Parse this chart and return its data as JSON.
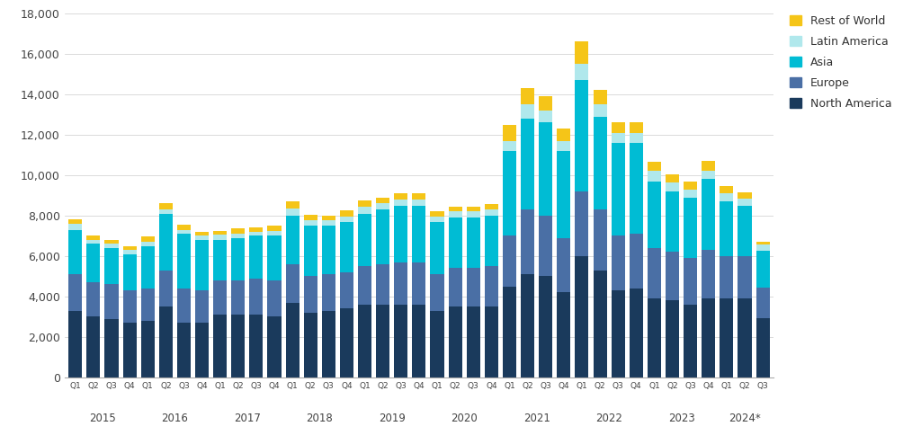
{
  "quarters": [
    "Q1",
    "Q2",
    "Q3",
    "Q4",
    "Q1",
    "Q2",
    "Q3",
    "Q4",
    "Q1",
    "Q2",
    "Q3",
    "Q4",
    "Q1",
    "Q2",
    "Q3",
    "Q4",
    "Q1",
    "Q2",
    "Q3",
    "Q4",
    "Q1",
    "Q2",
    "Q3",
    "Q4",
    "Q1",
    "Q2",
    "Q3",
    "Q4",
    "Q1",
    "Q2",
    "Q3",
    "Q4",
    "Q1",
    "Q2",
    "Q3",
    "Q4",
    "Q1",
    "Q2",
    "Q3"
  ],
  "year_labels": [
    "2015",
    "2016",
    "2017",
    "2018",
    "2019",
    "2020",
    "2021",
    "2022",
    "2023",
    "2024*"
  ],
  "year_positions": [
    1.5,
    5.5,
    9.5,
    13.5,
    17.5,
    21.5,
    25.5,
    29.5,
    33.5,
    37.0
  ],
  "north_america": [
    3300,
    3000,
    2900,
    2700,
    2800,
    3500,
    2700,
    2700,
    3100,
    3100,
    3100,
    3000,
    3700,
    3200,
    3300,
    3400,
    3600,
    3600,
    3600,
    3600,
    3300,
    3500,
    3500,
    3500,
    4500,
    5100,
    5000,
    4200,
    6000,
    5300,
    4300,
    4400,
    3900,
    3800,
    3600,
    3900,
    3900,
    3900,
    2950
  ],
  "europe": [
    1800,
    1700,
    1700,
    1600,
    1600,
    1800,
    1700,
    1600,
    1700,
    1700,
    1800,
    1800,
    1900,
    1800,
    1800,
    1800,
    1900,
    2000,
    2100,
    2100,
    1800,
    1900,
    1900,
    2000,
    2500,
    3200,
    3000,
    2700,
    3200,
    3000,
    2700,
    2700,
    2500,
    2400,
    2300,
    2400,
    2100,
    2100,
    1500
  ],
  "asia": [
    2200,
    1900,
    1800,
    1800,
    2100,
    2800,
    2700,
    2500,
    2000,
    2100,
    2100,
    2200,
    2400,
    2500,
    2400,
    2500,
    2600,
    2700,
    2800,
    2800,
    2600,
    2500,
    2500,
    2500,
    4200,
    4500,
    4600,
    4300,
    5500,
    4600,
    4600,
    4500,
    3300,
    3000,
    3000,
    3500,
    2700,
    2500,
    1800
  ],
  "latin_america": [
    300,
    200,
    200,
    200,
    200,
    200,
    200,
    200,
    250,
    200,
    200,
    250,
    350,
    250,
    250,
    250,
    350,
    300,
    300,
    300,
    250,
    300,
    300,
    300,
    500,
    700,
    600,
    500,
    800,
    600,
    500,
    500,
    500,
    450,
    400,
    400,
    400,
    350,
    300
  ],
  "rest_of_world": [
    200,
    200,
    200,
    200,
    250,
    300,
    250,
    200,
    200,
    250,
    200,
    250,
    350,
    300,
    250,
    300,
    300,
    300,
    300,
    300,
    250,
    250,
    250,
    250,
    800,
    800,
    700,
    600,
    1100,
    700,
    500,
    500,
    450,
    400,
    400,
    500,
    350,
    300,
    150
  ],
  "colors": {
    "north_america": "#1a3a5c",
    "europe": "#4a6fa5",
    "asia": "#00bcd4",
    "latin_america": "#b0e8ec",
    "rest_of_world": "#f5c518"
  },
  "ylim": [
    0,
    18000
  ],
  "yticks": [
    0,
    2000,
    4000,
    6000,
    8000,
    10000,
    12000,
    14000,
    16000,
    18000
  ],
  "legend_labels": [
    "Rest of World",
    "Latin America",
    "Asia",
    "Europe",
    "North America"
  ],
  "background_color": "#ffffff"
}
